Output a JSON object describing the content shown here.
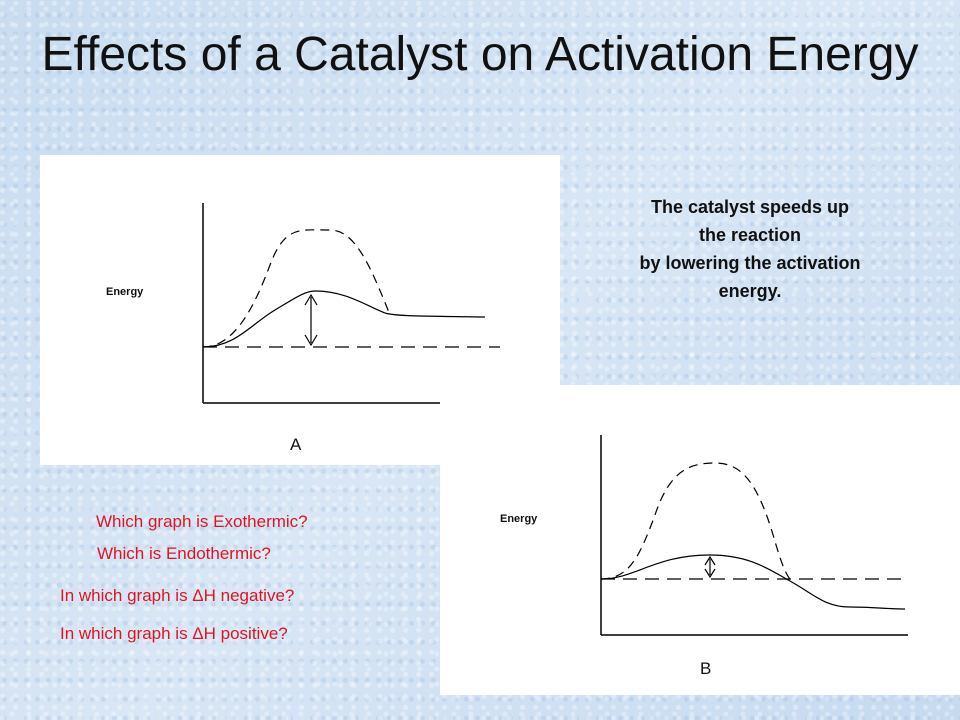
{
  "title": "Effects of a Catalyst on Activation Energy",
  "note": {
    "lines": [
      "The catalyst speeds up",
      "the reaction",
      "by lowering the activation",
      "energy."
    ]
  },
  "graph_a": {
    "y_label": "Energy",
    "caption": "A"
  },
  "graph_b": {
    "y_label": "Energy",
    "caption": "B"
  },
  "questions": [
    "Which graph is Exothermic?",
    "Which is Endothermic?",
    "In which graph is ΔH negative?",
    "In which graph is ΔH positive?"
  ],
  "colors": {
    "question_text": "#e0141e",
    "slide_background": "#cfe0f2"
  }
}
